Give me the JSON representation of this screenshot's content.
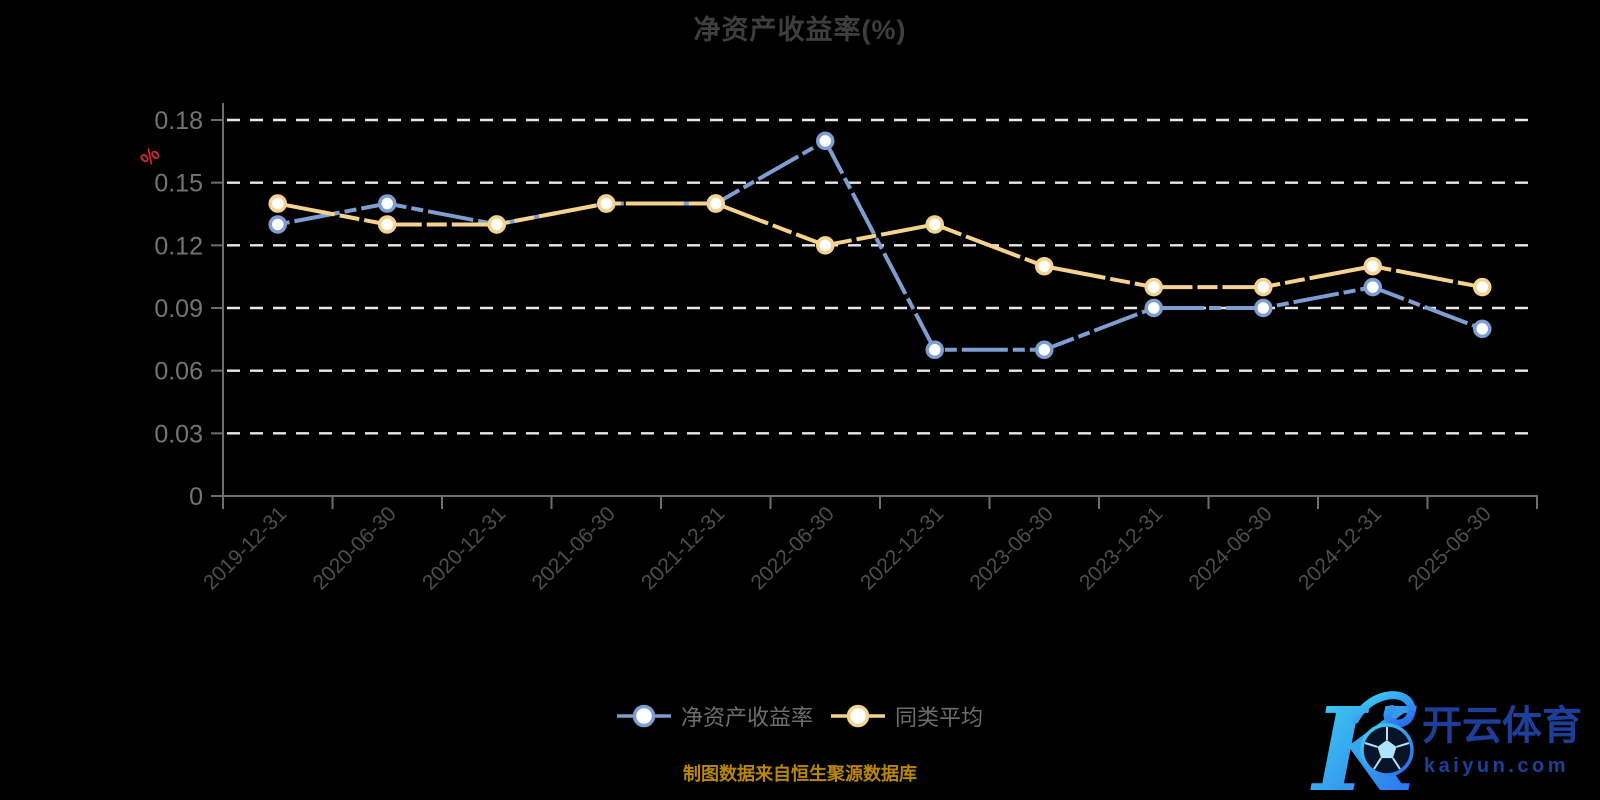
{
  "title": "净资产收益率(%)",
  "source_note": "制图数据来自恒生聚源数据库",
  "colors": {
    "background": "#000000",
    "title_text": "#3e3e3e",
    "axis_line": "#6e6e6e",
    "y_tick_label": "#747474",
    "x_tick_label": "#4e4e4e",
    "gridline": "#e8e8e8",
    "legend_text": "#6e6e6e",
    "unit_label": "#cc2b2b",
    "source_text": "#b8860b",
    "logo_text": "#1d3f9a",
    "logo_gradient_start": "#41d6f2",
    "logo_gradient_end": "#2968ef",
    "ball_fill": "#071428",
    "ball_ring": "#2f9bf2",
    "ball_lines": "#aee2ff"
  },
  "chart_data": {
    "type": "line",
    "title": "净资产收益率(%)",
    "xlabel": "",
    "ylabel": "%",
    "categories": [
      "2019-12-31",
      "2020-06-30",
      "2020-12-31",
      "2021-06-30",
      "2021-12-31",
      "2022-06-30",
      "2022-12-31",
      "2023-06-30",
      "2023-12-31",
      "2024-06-30",
      "2024-12-31",
      "2025-06-30"
    ],
    "series": [
      {
        "name": "净资产收益率",
        "color": "#7e9ed2",
        "values": [
          0.13,
          0.14,
          0.13,
          0.14,
          0.14,
          0.17,
          0.07,
          0.07,
          0.09,
          0.09,
          0.1,
          0.08
        ]
      },
      {
        "name": "同类平均",
        "color": "#f5d38f",
        "values": [
          0.14,
          0.13,
          0.13,
          0.14,
          0.14,
          0.12,
          0.13,
          0.11,
          0.1,
          0.1,
          0.11,
          0.1
        ]
      }
    ],
    "ylim": [
      0,
      0.18
    ],
    "yticks": [
      0,
      0.03,
      0.06,
      0.09,
      0.12,
      0.15,
      0.18
    ],
    "ytick_labels": [
      "0",
      "0.03",
      "0.06",
      "0.09",
      "0.12",
      "0.15",
      "0.18"
    ],
    "grid": "horizontal-dashed-white",
    "legend_position": "bottom-center"
  },
  "watermark": {
    "monogram": "K",
    "brand": "开云体育",
    "domain": "kaiyun.com"
  }
}
